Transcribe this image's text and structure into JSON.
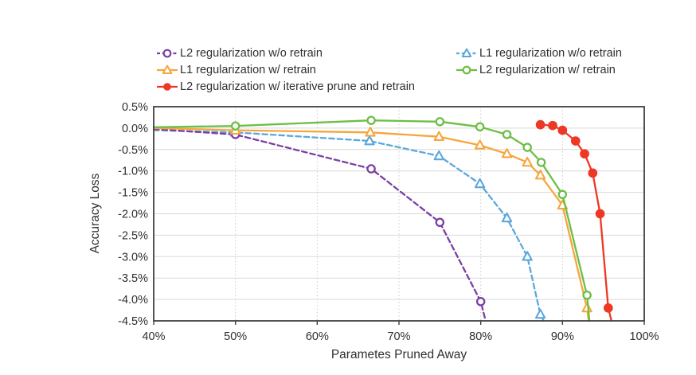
{
  "chart_data": {
    "type": "line",
    "title": "",
    "xlabel": "Parametes Pruned Away",
    "ylabel": "Accuracy Loss",
    "xlim": [
      40,
      100
    ],
    "ylim": [
      -4.5,
      0.5
    ],
    "x_ticks": [
      40,
      50,
      60,
      70,
      80,
      90,
      100
    ],
    "x_tick_labels": [
      "40%",
      "50%",
      "60%",
      "70%",
      "80%",
      "90%",
      "100%"
    ],
    "y_ticks": [
      0.5,
      0.0,
      -0.5,
      -1.0,
      -1.5,
      -2.0,
      -2.5,
      -3.0,
      -3.5,
      -4.0,
      -4.5
    ],
    "y_tick_labels": [
      "0.5%",
      "0.0%",
      "-0.5%",
      "-1.0%",
      "-1.5%",
      "-2.0%",
      "-2.5%",
      "-3.0%",
      "-3.5%",
      "-4.0%",
      "-4.5%"
    ],
    "grid": {
      "horizontal": "solid",
      "vertical": "dotted"
    },
    "axis_color": "#404040",
    "gridline_color": "#d9d9d9",
    "text_color": "#2f2f2f",
    "legend": {
      "position": "top",
      "columns": [
        [
          1,
          2,
          4
        ],
        [
          0,
          3
        ]
      ]
    },
    "series": [
      {
        "name": "L1 regularization w/o retrain",
        "color": "#5BA8DC",
        "dashed": true,
        "marker": "triangle-open",
        "points": [
          [
            40,
            -0.05
          ],
          [
            50,
            -0.1
          ],
          [
            66.4,
            -0.3
          ],
          [
            74.9,
            -0.65
          ],
          [
            79.9,
            -1.3
          ],
          [
            83.2,
            -2.1
          ],
          [
            85.7,
            -3.0
          ],
          [
            87.3,
            -4.35
          ],
          [
            87.7,
            -4.5
          ]
        ],
        "marker_start": 1,
        "marker_trail_skip": 1
      },
      {
        "name": "L2 regularization w/o retrain",
        "color": "#7C3FA4",
        "dashed": true,
        "marker": "circle-open",
        "points": [
          [
            40,
            -0.02
          ],
          [
            50,
            -0.15
          ],
          [
            66.6,
            -0.95
          ],
          [
            75,
            -2.2
          ],
          [
            80,
            -4.05
          ],
          [
            80.6,
            -4.5
          ]
        ],
        "marker_start": 1,
        "marker_trail_skip": 1
      },
      {
        "name": "L1 regularization w/ retrain",
        "color": "#F6A63C",
        "dashed": false,
        "marker": "triangle-open",
        "points": [
          [
            40,
            0.0
          ],
          [
            50,
            -0.05
          ],
          [
            66.5,
            -0.1
          ],
          [
            74.9,
            -0.2
          ],
          [
            79.9,
            -0.4
          ],
          [
            83.2,
            -0.6
          ],
          [
            85.7,
            -0.8
          ],
          [
            87.3,
            -1.1
          ],
          [
            90,
            -1.8
          ],
          [
            93,
            -4.2
          ],
          [
            93.2,
            -4.5
          ]
        ],
        "marker_start": 1,
        "marker_trail_skip": 1
      },
      {
        "name": "L2 regularization w/ retrain",
        "color": "#6DBE45",
        "dashed": false,
        "marker": "circle-open",
        "points": [
          [
            40,
            0.02
          ],
          [
            50,
            0.05
          ],
          [
            66.6,
            0.18
          ],
          [
            75,
            0.15
          ],
          [
            79.9,
            0.03
          ],
          [
            83.2,
            -0.15
          ],
          [
            85.7,
            -0.45
          ],
          [
            87.4,
            -0.8
          ],
          [
            90,
            -1.55
          ],
          [
            93,
            -3.9
          ],
          [
            93.3,
            -4.5
          ]
        ],
        "marker_start": 1,
        "marker_trail_skip": 1
      },
      {
        "name": "L2 regularization w/ iterative prune and retrain",
        "color": "#EE3724",
        "dashed": false,
        "marker": "circle-filled",
        "points": [
          [
            87.3,
            0.08
          ],
          [
            88.8,
            0.06
          ],
          [
            90,
            -0.05
          ],
          [
            91.6,
            -0.3
          ],
          [
            92.7,
            -0.6
          ],
          [
            93.7,
            -1.05
          ],
          [
            94.6,
            -2.0
          ],
          [
            95.6,
            -4.2
          ],
          [
            96,
            -4.5
          ]
        ],
        "marker_start": 0,
        "marker_trail_skip": 1
      }
    ]
  }
}
